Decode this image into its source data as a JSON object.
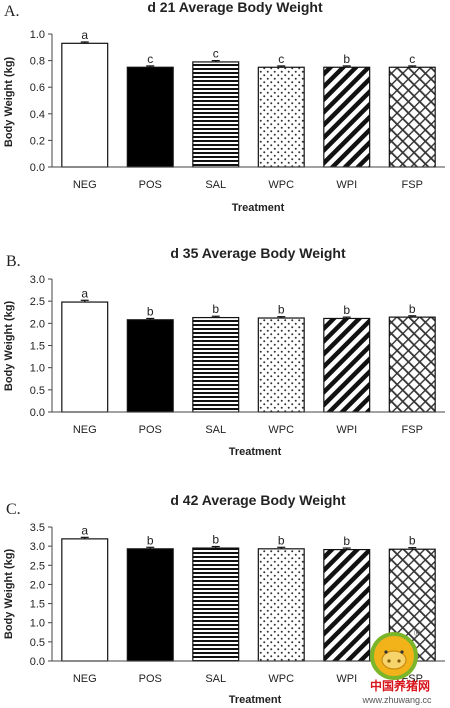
{
  "chart_data": [
    {
      "type": "bar",
      "panel_label": "A.",
      "title": "d 21 Average Body Weight",
      "xlabel": "Treatment",
      "ylabel": "Body Weight (kg)",
      "ylim": [
        0,
        1.0
      ],
      "yticks": [
        "0.0",
        "0.2",
        "0.4",
        "0.6",
        "0.8",
        "1.0"
      ],
      "categories": [
        "NEG",
        "POS",
        "SAL",
        "WPC",
        "WPI",
        "FSP"
      ],
      "values": [
        0.93,
        0.75,
        0.79,
        0.75,
        0.75,
        0.75
      ],
      "errors": [
        0.01,
        0.01,
        0.01,
        0.01,
        0.01,
        0.01
      ],
      "significance": [
        "a",
        "c",
        "c",
        "c",
        "b",
        "c"
      ]
    },
    {
      "type": "bar",
      "panel_label": "B.",
      "title": "d 35 Average Body Weight",
      "xlabel": "Treatment",
      "ylabel": "Body Weight (kg)",
      "ylim": [
        0,
        3.0
      ],
      "yticks": [
        "0.0",
        "0.5",
        "1.0",
        "1.5",
        "2.0",
        "2.5",
        "3.0"
      ],
      "categories": [
        "NEG",
        "POS",
        "SAL",
        "WPC",
        "WPI",
        "FSP"
      ],
      "values": [
        2.48,
        2.08,
        2.13,
        2.12,
        2.11,
        2.14
      ],
      "errors": [
        0.04,
        0.03,
        0.03,
        0.03,
        0.03,
        0.03
      ],
      "significance": [
        "a",
        "b",
        "b",
        "b",
        "b",
        "b"
      ]
    },
    {
      "type": "bar",
      "panel_label": "C.",
      "title": "d 42 Average Body Weight",
      "xlabel": "Treatment",
      "ylabel": "Body Weight (kg)",
      "ylim": [
        0,
        3.5
      ],
      "yticks": [
        "0.0",
        "0.5",
        "1.0",
        "1.5",
        "2.0",
        "2.5",
        "3.0",
        "3.5"
      ],
      "categories": [
        "NEG",
        "POS",
        "SAL",
        "WPC",
        "WPI",
        "FSP"
      ],
      "values": [
        3.19,
        2.93,
        2.95,
        2.93,
        2.91,
        2.92
      ],
      "errors": [
        0.04,
        0.04,
        0.04,
        0.04,
        0.04,
        0.04
      ],
      "significance": [
        "a",
        "b",
        "b",
        "b",
        "b",
        "b"
      ]
    }
  ],
  "bar_fills": [
    "white",
    "black",
    "horizontal-stripes",
    "dots",
    "diagonal-stripes",
    "diagonal-crosshatch"
  ],
  "watermark": {
    "text": "中国养猪网",
    "url": "www.zhuwang.cc",
    "mark": "®",
    "colors": [
      "#d8141b",
      "#f2b31a",
      "#7bb52a"
    ]
  }
}
